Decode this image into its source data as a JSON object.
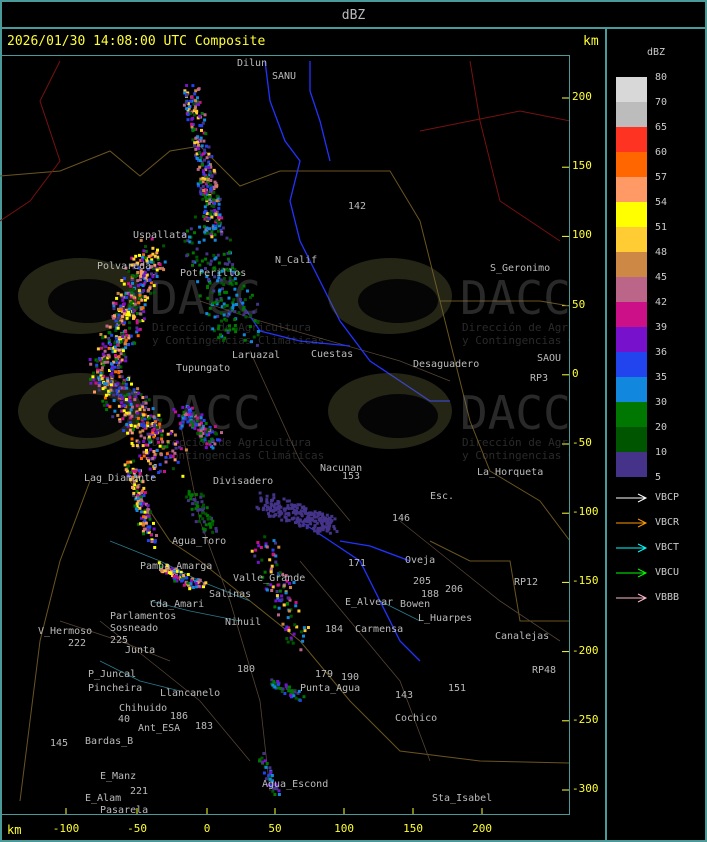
{
  "header": {
    "title": "dBZ"
  },
  "map": {
    "title": "2026/01/30 14:08:00 UTC Composite",
    "unit": "km",
    "x_ticks": [
      "-100",
      "-50",
      "0",
      "50",
      "100",
      "150",
      "200"
    ],
    "y_ticks": [
      "200",
      "150",
      "100",
      "50",
      "0",
      "-50",
      "-100",
      "-150",
      "-200",
      "-250",
      "-300"
    ],
    "watermark": {
      "logo": "DACC",
      "line1": "Dirección de Agricultura",
      "line2": "y Contingencias Climáticas"
    },
    "places": [
      "Dilun",
      "SANU",
      "Uspallata",
      "Polvareda",
      "N_Calif",
      "Cuestas",
      "Laruazal",
      "Potrerillos",
      "Tupungato",
      "Divisadero",
      "Lag_Diamante",
      "Agua_Toro",
      "Pampa_Amarga",
      "Salinas",
      "Cda_Amari",
      "Parlamentos",
      "Sosneado",
      "V_Hermoso",
      "Junta",
      "P_Juncal",
      "Pincheira",
      "Llancanelo",
      "Chihuido",
      "Ant_ESA",
      "Bardas_B",
      "E_Manz",
      "E_Alam",
      "Pasarela",
      "Nihuil",
      "Valle_Grande",
      "Punta_Agua",
      "Agua_Escond",
      "Nacunan",
      "La_Horqueta",
      "Esc.",
      "Desaguadero",
      "S_Geronimo",
      "SAOU",
      "Oveja",
      "Carmensa",
      "L_Huarpes",
      "Canalejas",
      "Cochico",
      "Sta_Isabel",
      "Bowen",
      "E_Alvear",
      "RP3",
      "RP12",
      "RP48",
      "142",
      "153",
      "146",
      "205",
      "206",
      "188",
      "184",
      "180",
      "179",
      "190",
      "143",
      "151",
      "171",
      "222",
      "225",
      "186",
      "183",
      "40",
      "145",
      "221"
    ]
  },
  "legend": {
    "title": "dBZ",
    "levels": [
      {
        "label": "80",
        "color": "#d8d8d8"
      },
      {
        "label": "70",
        "color": "#bcbcbc"
      },
      {
        "label": "65",
        "color": "#ff3322"
      },
      {
        "label": "60",
        "color": "#ff6600"
      },
      {
        "label": "57",
        "color": "#ff9966"
      },
      {
        "label": "54",
        "color": "#ffff00"
      },
      {
        "label": "51",
        "color": "#ffcc33"
      },
      {
        "label": "48",
        "color": "#cc8844"
      },
      {
        "label": "45",
        "color": "#bb6688"
      },
      {
        "label": "42",
        "color": "#cc1188"
      },
      {
        "label": "39",
        "color": "#7711cc"
      },
      {
        "label": "36",
        "color": "#2244ee"
      },
      {
        "label": "35",
        "color": "#1188dd"
      },
      {
        "label": "30",
        "color": "#007700"
      },
      {
        "label": "20",
        "color": "#005500"
      },
      {
        "label": "10",
        "color": "#443388"
      }
    ],
    "bottom_label": "5",
    "radars": [
      {
        "label": "VBCP",
        "color": "#ffffff"
      },
      {
        "label": "VBCR",
        "color": "#ff9900"
      },
      {
        "label": "VBCT",
        "color": "#00ffff"
      },
      {
        "label": "VBCU",
        "color": "#00ff00"
      },
      {
        "label": "VBBB",
        "color": "#ffbbcc"
      }
    ]
  }
}
